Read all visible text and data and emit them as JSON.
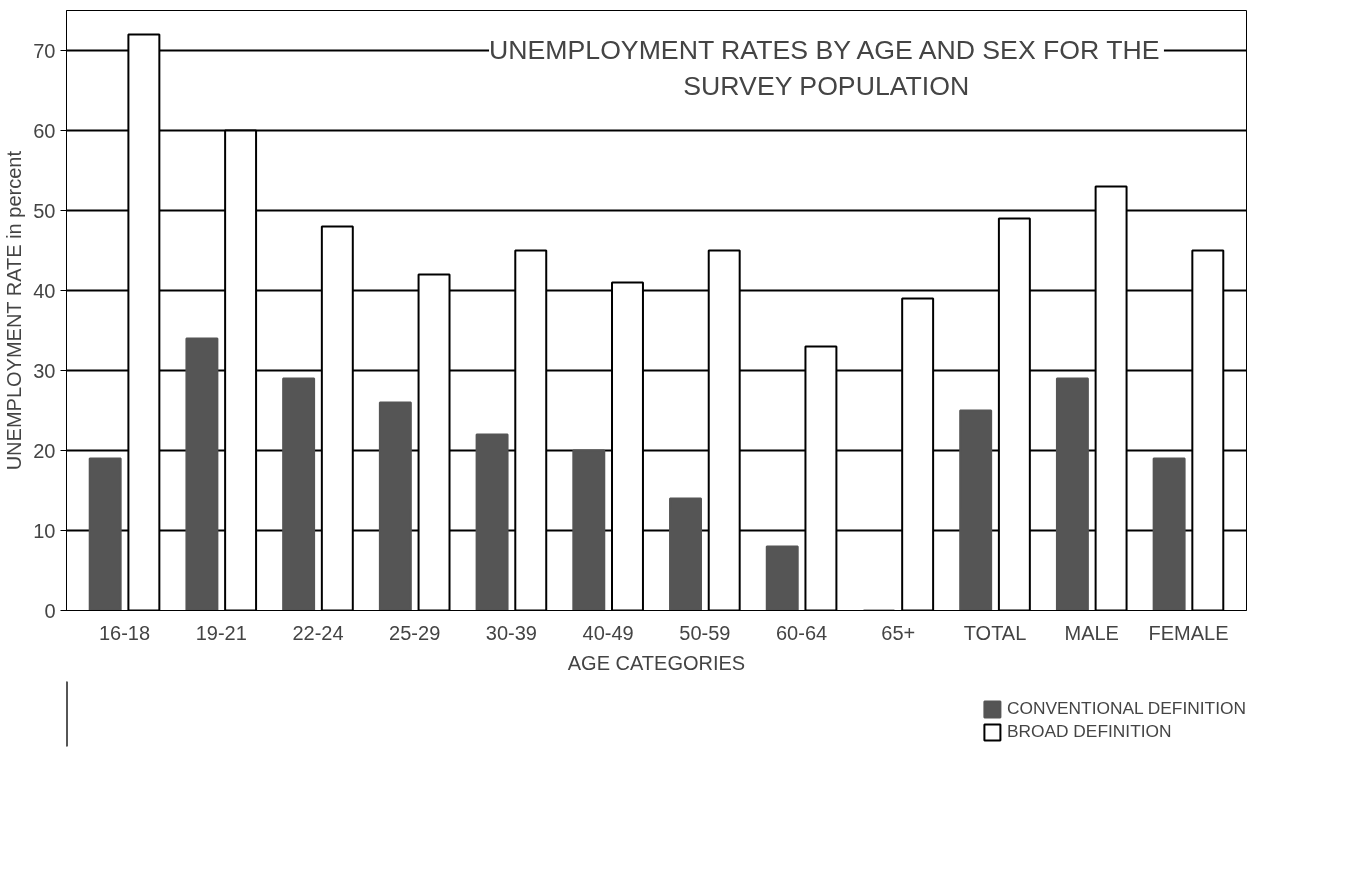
{
  "chart_data": {
    "type": "bar",
    "title": "UNEMPLOYMENT RATES BY AGE AND SEX FOR THE\nSURVEY POPULATION",
    "xlabel": "AGE CATEGORIES",
    "ylabel": "UNEMPLOYMENT RATE in percent",
    "categories": [
      "16-18",
      "19-21",
      "22-24",
      "25-29",
      "30-39",
      "40-49",
      "50-59",
      "60-64",
      "65+",
      "TOTAL",
      "MALE",
      "FEMALE"
    ],
    "series": [
      {
        "name": "CONVENTIONAL DEFINITION",
        "color": "#555555",
        "values": [
          19,
          34,
          29,
          26,
          22,
          20,
          14,
          8,
          0,
          25,
          29,
          19
        ]
      },
      {
        "name": "BROAD DEFINITION",
        "color": "#ffffff",
        "values": [
          72,
          60,
          48,
          42,
          45,
          41,
          45,
          33,
          39,
          49,
          53,
          45
        ]
      }
    ],
    "ylim": [
      0,
      75
    ],
    "yticks": [
      0,
      10,
      20,
      30,
      40,
      50,
      60,
      70
    ],
    "grid": "y",
    "legend": "bottom right"
  }
}
